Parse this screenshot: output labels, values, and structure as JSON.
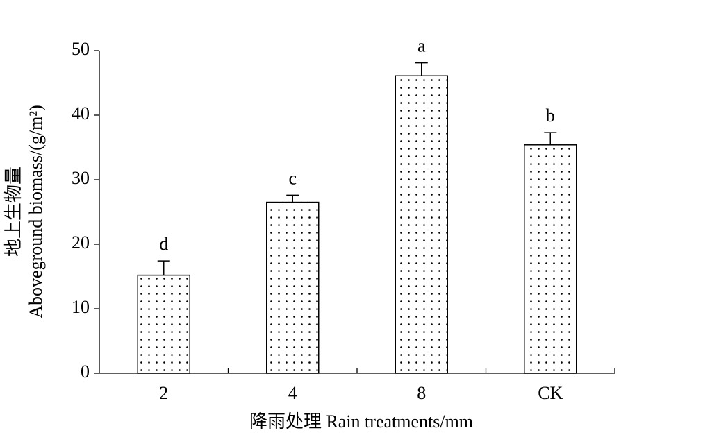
{
  "chart_data": {
    "type": "bar",
    "categories": [
      "2",
      "4",
      "8",
      "CK"
    ],
    "values": [
      15.2,
      26.5,
      46.1,
      35.4
    ],
    "errors": [
      2.2,
      1.1,
      2.0,
      1.9
    ],
    "significance_letters": [
      "d",
      "c",
      "a",
      "b"
    ],
    "x_label": "降雨处理 Rain treatments/mm",
    "y_label": [
      "地上生物量",
      "Aboveground biomass/(g/m²)"
    ],
    "ylim": [
      0,
      50
    ],
    "yticks": [
      0,
      10,
      20,
      30,
      40,
      50
    ],
    "color": "#000000",
    "pattern": "dots",
    "grid": false
  }
}
